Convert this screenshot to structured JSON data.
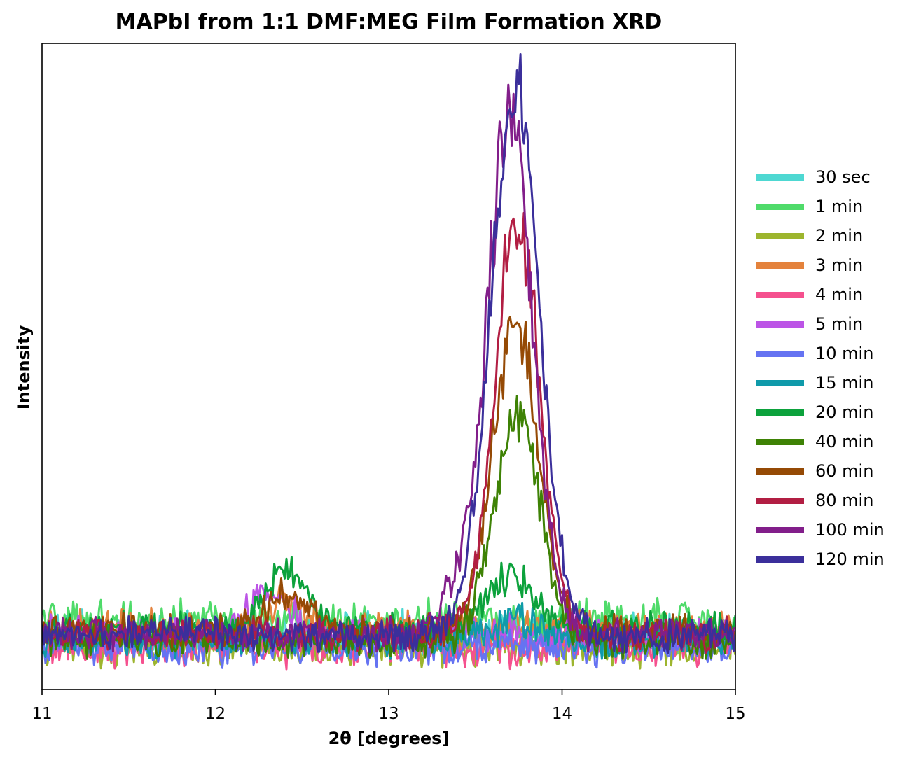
{
  "chart_data": {
    "type": "line",
    "title": "MAPbI from 1:1 DMF:MEG Film Formation XRD",
    "xlabel": "2θ [degrees]",
    "ylabel": "Intensity",
    "xlim": [
      11,
      15
    ],
    "ylim": [
      0,
      100
    ],
    "xticks": [
      "11",
      "12",
      "13",
      "14",
      "15"
    ],
    "yticks_shown": false,
    "grid": false,
    "legend_position": "right",
    "series": [
      {
        "name": "30 sec",
        "color": "#4ed8d2",
        "baseline": 8.5,
        "noise": 4.0,
        "peaks": [],
        "values_at": {
          "11.0": 12,
          "12.0": 10,
          "13.0": 8,
          "13.75": 8,
          "14.0": 8,
          "15.0": 9
        }
      },
      {
        "name": "1 min",
        "color": "#4fdb6a",
        "baseline": 10.5,
        "noise": 4.0,
        "peaks": [],
        "values_at": {
          "11.0": 14,
          "12.0": 12,
          "13.0": 10,
          "13.75": 9,
          "14.0": 9,
          "15.0": 10
        }
      },
      {
        "name": "2 min",
        "color": "#9db52e",
        "baseline": 6.5,
        "noise": 3.5,
        "peaks": [],
        "values_at": {
          "11.0": 7,
          "12.0": 8,
          "13.0": 6,
          "13.75": 6,
          "14.0": 6,
          "15.0": 7
        }
      },
      {
        "name": "3 min",
        "color": "#e4823c",
        "baseline": 9.5,
        "noise": 3.5,
        "peaks": [
          {
            "x": 12.4,
            "height": 4,
            "width": 0.1
          }
        ],
        "values_at": {
          "11.0": 11,
          "12.0": 11,
          "12.42": 16,
          "13.0": 9,
          "14.0": 8,
          "15.0": 9
        }
      },
      {
        "name": "4 min",
        "color": "#f5508e",
        "baseline": 6.5,
        "noise": 3.5,
        "peaks": [],
        "values_at": {
          "11.0": 9,
          "12.0": 8,
          "13.0": 7,
          "13.75": 7,
          "14.0": 6,
          "15.0": 6
        }
      },
      {
        "name": "5 min",
        "color": "#bc54e6",
        "baseline": 8.5,
        "noise": 3.5,
        "peaks": [
          {
            "x": 12.3,
            "height": 6,
            "width": 0.12
          }
        ],
        "values_at": {
          "11.0": 9,
          "12.0": 10,
          "12.27": 23,
          "13.0": 8,
          "14.0": 8,
          "15.0": 8
        }
      },
      {
        "name": "10 min",
        "color": "#6573f2",
        "baseline": 6.5,
        "noise": 3.5,
        "peaks": [],
        "values_at": {
          "11.0": 8,
          "12.0": 7,
          "13.0": 7,
          "13.75": 9,
          "14.0": 7,
          "15.0": 6
        }
      },
      {
        "name": "15 min",
        "color": "#0f9aaa",
        "baseline": 7.5,
        "noise": 3.0,
        "peaks": [
          {
            "x": 13.75,
            "height": 3,
            "width": 0.15
          }
        ],
        "values_at": {
          "11.0": 8,
          "12.0": 8,
          "13.0": 8,
          "13.75": 11,
          "14.0": 8,
          "15.0": 7
        }
      },
      {
        "name": "20 min",
        "color": "#0ca23c",
        "baseline": 9.5,
        "noise": 3.0,
        "peaks": [
          {
            "x": 12.4,
            "height": 9,
            "width": 0.12
          },
          {
            "x": 13.7,
            "height": 8,
            "width": 0.13
          }
        ],
        "values_at": {
          "11.0": 10,
          "12.0": 9,
          "12.17": 25,
          "12.45": 20,
          "13.0": 9,
          "13.75": 17,
          "14.0": 8,
          "15.0": 8
        }
      },
      {
        "name": "40 min",
        "color": "#3e8205",
        "baseline": 7.5,
        "noise": 3.0,
        "peaks": [
          {
            "x": 13.74,
            "height": 35,
            "width": 0.13
          }
        ],
        "values_at": {
          "11.0": 8,
          "12.0": 8,
          "13.0": 8,
          "13.74": 45,
          "14.0": 11,
          "15.0": 7
        }
      },
      {
        "name": "60 min",
        "color": "#954a05",
        "baseline": 9.0,
        "noise": 3.0,
        "peaks": [
          {
            "x": 12.4,
            "height": 5,
            "width": 0.14
          },
          {
            "x": 13.73,
            "height": 48,
            "width": 0.13
          }
        ],
        "values_at": {
          "11.0": 9,
          "12.0": 9,
          "12.4": 16,
          "13.0": 9,
          "13.73": 58,
          "14.0": 13,
          "15.0": 8
        }
      },
      {
        "name": "80 min",
        "color": "#b21e43",
        "baseline": 8.5,
        "noise": 3.0,
        "peaks": [
          {
            "x": 13.74,
            "height": 64,
            "width": 0.13
          }
        ],
        "values_at": {
          "11.0": 8,
          "12.0": 9,
          "13.0": 9,
          "13.74": 77,
          "14.0": 17,
          "15.0": 8
        }
      },
      {
        "name": "100 min",
        "color": "#821e8a",
        "baseline": 8.5,
        "noise": 3.0,
        "peaks": [
          {
            "x": 13.7,
            "height": 81,
            "width": 0.13
          },
          {
            "x": 13.38,
            "height": 6,
            "width": 0.1
          }
        ],
        "values_at": {
          "11.0": 8,
          "12.0": 8,
          "13.0": 9,
          "13.4": 17,
          "13.7": 93,
          "14.0": 20,
          "15.0": 8
        }
      },
      {
        "name": "120 min",
        "color": "#3b2f9b",
        "baseline": 8.5,
        "noise": 3.0,
        "peaks": [
          {
            "x": 13.73,
            "height": 84,
            "width": 0.14
          }
        ],
        "values_at": {
          "11.0": 7,
          "12.0": 8,
          "13.0": 9,
          "13.4": 18,
          "13.77": 101,
          "14.0": 22,
          "15.0": 8
        }
      }
    ]
  }
}
